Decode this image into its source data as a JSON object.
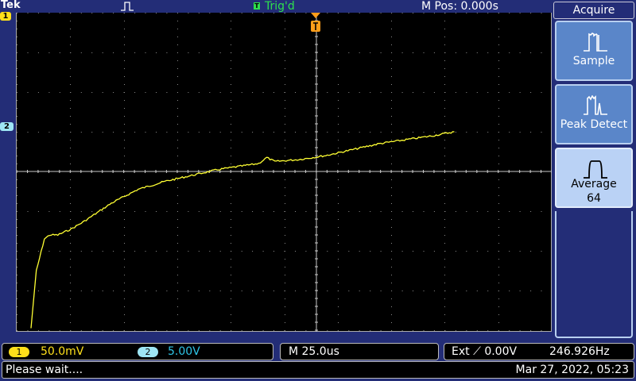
{
  "header": {
    "brand": "Tek",
    "trigger_status": "Trig'd",
    "trigger_status_glyph": "T",
    "horizontal_position": "M Pos: 0.000s"
  },
  "markers": {
    "ch1": "1",
    "ch2": "2"
  },
  "menu": {
    "title": "Acquire",
    "buttons": [
      {
        "label": "Sample",
        "icon": "sample-waveform-icon",
        "active": false
      },
      {
        "label": "Peak Detect",
        "icon": "peak-detect-waveform-icon",
        "active": false
      },
      {
        "label": "Average",
        "sub": "64",
        "icon": "average-waveform-icon",
        "active": true
      }
    ]
  },
  "channels": {
    "ch1": {
      "label": "1",
      "scale": "50.0mV",
      "color": "#ffe01a"
    },
    "ch2": {
      "label": "2",
      "scale": "5.00V",
      "color": "#9ee6f5"
    }
  },
  "timebase": "M 25.0us",
  "trigger": {
    "source_text": "Ext ⟋ 0.00V",
    "frequency": "246.926Hz"
  },
  "status": {
    "message": "Please wait....",
    "datetime": "Mar 27, 2022, 05:23"
  },
  "colors": {
    "background": "#232d77",
    "trace": "#ffff33",
    "trigger_marker": "#ff9e1a",
    "active_button": "#bad2f5",
    "button": "#5a86c9"
  },
  "waveform": {
    "description_points": [
      [
        0,
        -3.95
      ],
      [
        0.1,
        -2.5
      ],
      [
        0.25,
        -1.7
      ],
      [
        0.35,
        -1.6
      ],
      [
        0.5,
        -1.6
      ],
      [
        0.75,
        -1.45
      ],
      [
        1.0,
        -1.25
      ],
      [
        1.5,
        -0.8
      ],
      [
        2.0,
        -0.45
      ],
      [
        2.5,
        -0.25
      ],
      [
        3.0,
        -0.1
      ],
      [
        3.5,
        0.05
      ],
      [
        4.0,
        0.15
      ],
      [
        4.25,
        0.2
      ],
      [
        4.4,
        0.35
      ],
      [
        4.55,
        0.25
      ],
      [
        5.0,
        0.3
      ],
      [
        5.5,
        0.4
      ],
      [
        6.0,
        0.55
      ],
      [
        6.5,
        0.7
      ],
      [
        7.0,
        0.8
      ],
      [
        7.5,
        0.9
      ],
      [
        7.9,
        1.0
      ]
    ]
  }
}
